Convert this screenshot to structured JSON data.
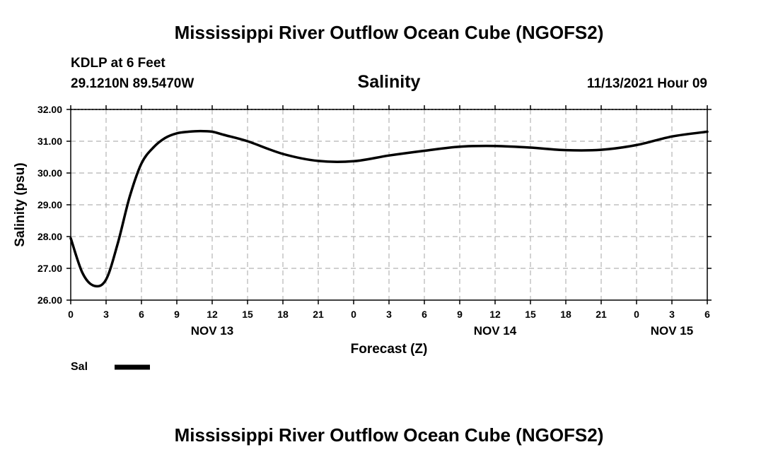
{
  "page": {
    "title_top": "Mississippi River Outflow Ocean Cube (NGOFS2)",
    "title_bottom": "Mississippi River Outflow Ocean Cube (NGOFS2)",
    "station": "KDLP at 6 Feet",
    "location": "29.1210N  89.5470W",
    "timestamp": "11/13/2021 Hour 09"
  },
  "chart_data": {
    "type": "line",
    "title": "Salinity",
    "xlabel": "Forecast (Z)",
    "ylabel": "Salinity (psu)",
    "ylim": [
      26,
      32
    ],
    "xlim": [
      0,
      54
    ],
    "yticks": [
      "26.00",
      "27.00",
      "28.00",
      "29.00",
      "30.00",
      "31.00",
      "32.00"
    ],
    "xtick_labels": [
      "0",
      "3",
      "6",
      "9",
      "12",
      "15",
      "18",
      "21",
      "0",
      "3",
      "6",
      "9",
      "12",
      "15",
      "18",
      "21",
      "0",
      "3",
      "6"
    ],
    "day_labels": [
      {
        "label": "NOV 13",
        "hour": 12
      },
      {
        "label": "NOV 14",
        "hour": 36
      },
      {
        "label": "NOV 15",
        "hour": 51
      }
    ],
    "grid": true,
    "legend_position": "bottom-left",
    "series": [
      {
        "name": "Sal",
        "color": "#000000",
        "x": [
          0,
          1,
          2,
          3,
          4,
          5,
          6,
          7,
          8,
          9,
          10,
          11,
          12,
          13,
          15,
          18,
          21,
          24,
          27,
          30,
          33,
          36,
          39,
          42,
          45,
          48,
          51,
          54
        ],
        "values": [
          27.95,
          26.85,
          26.45,
          26.65,
          27.8,
          29.25,
          30.3,
          30.8,
          31.1,
          31.25,
          31.3,
          31.32,
          31.3,
          31.2,
          31.0,
          30.6,
          30.38,
          30.37,
          30.55,
          30.7,
          30.83,
          30.85,
          30.8,
          30.72,
          30.73,
          30.88,
          31.15,
          31.3
        ]
      }
    ]
  }
}
